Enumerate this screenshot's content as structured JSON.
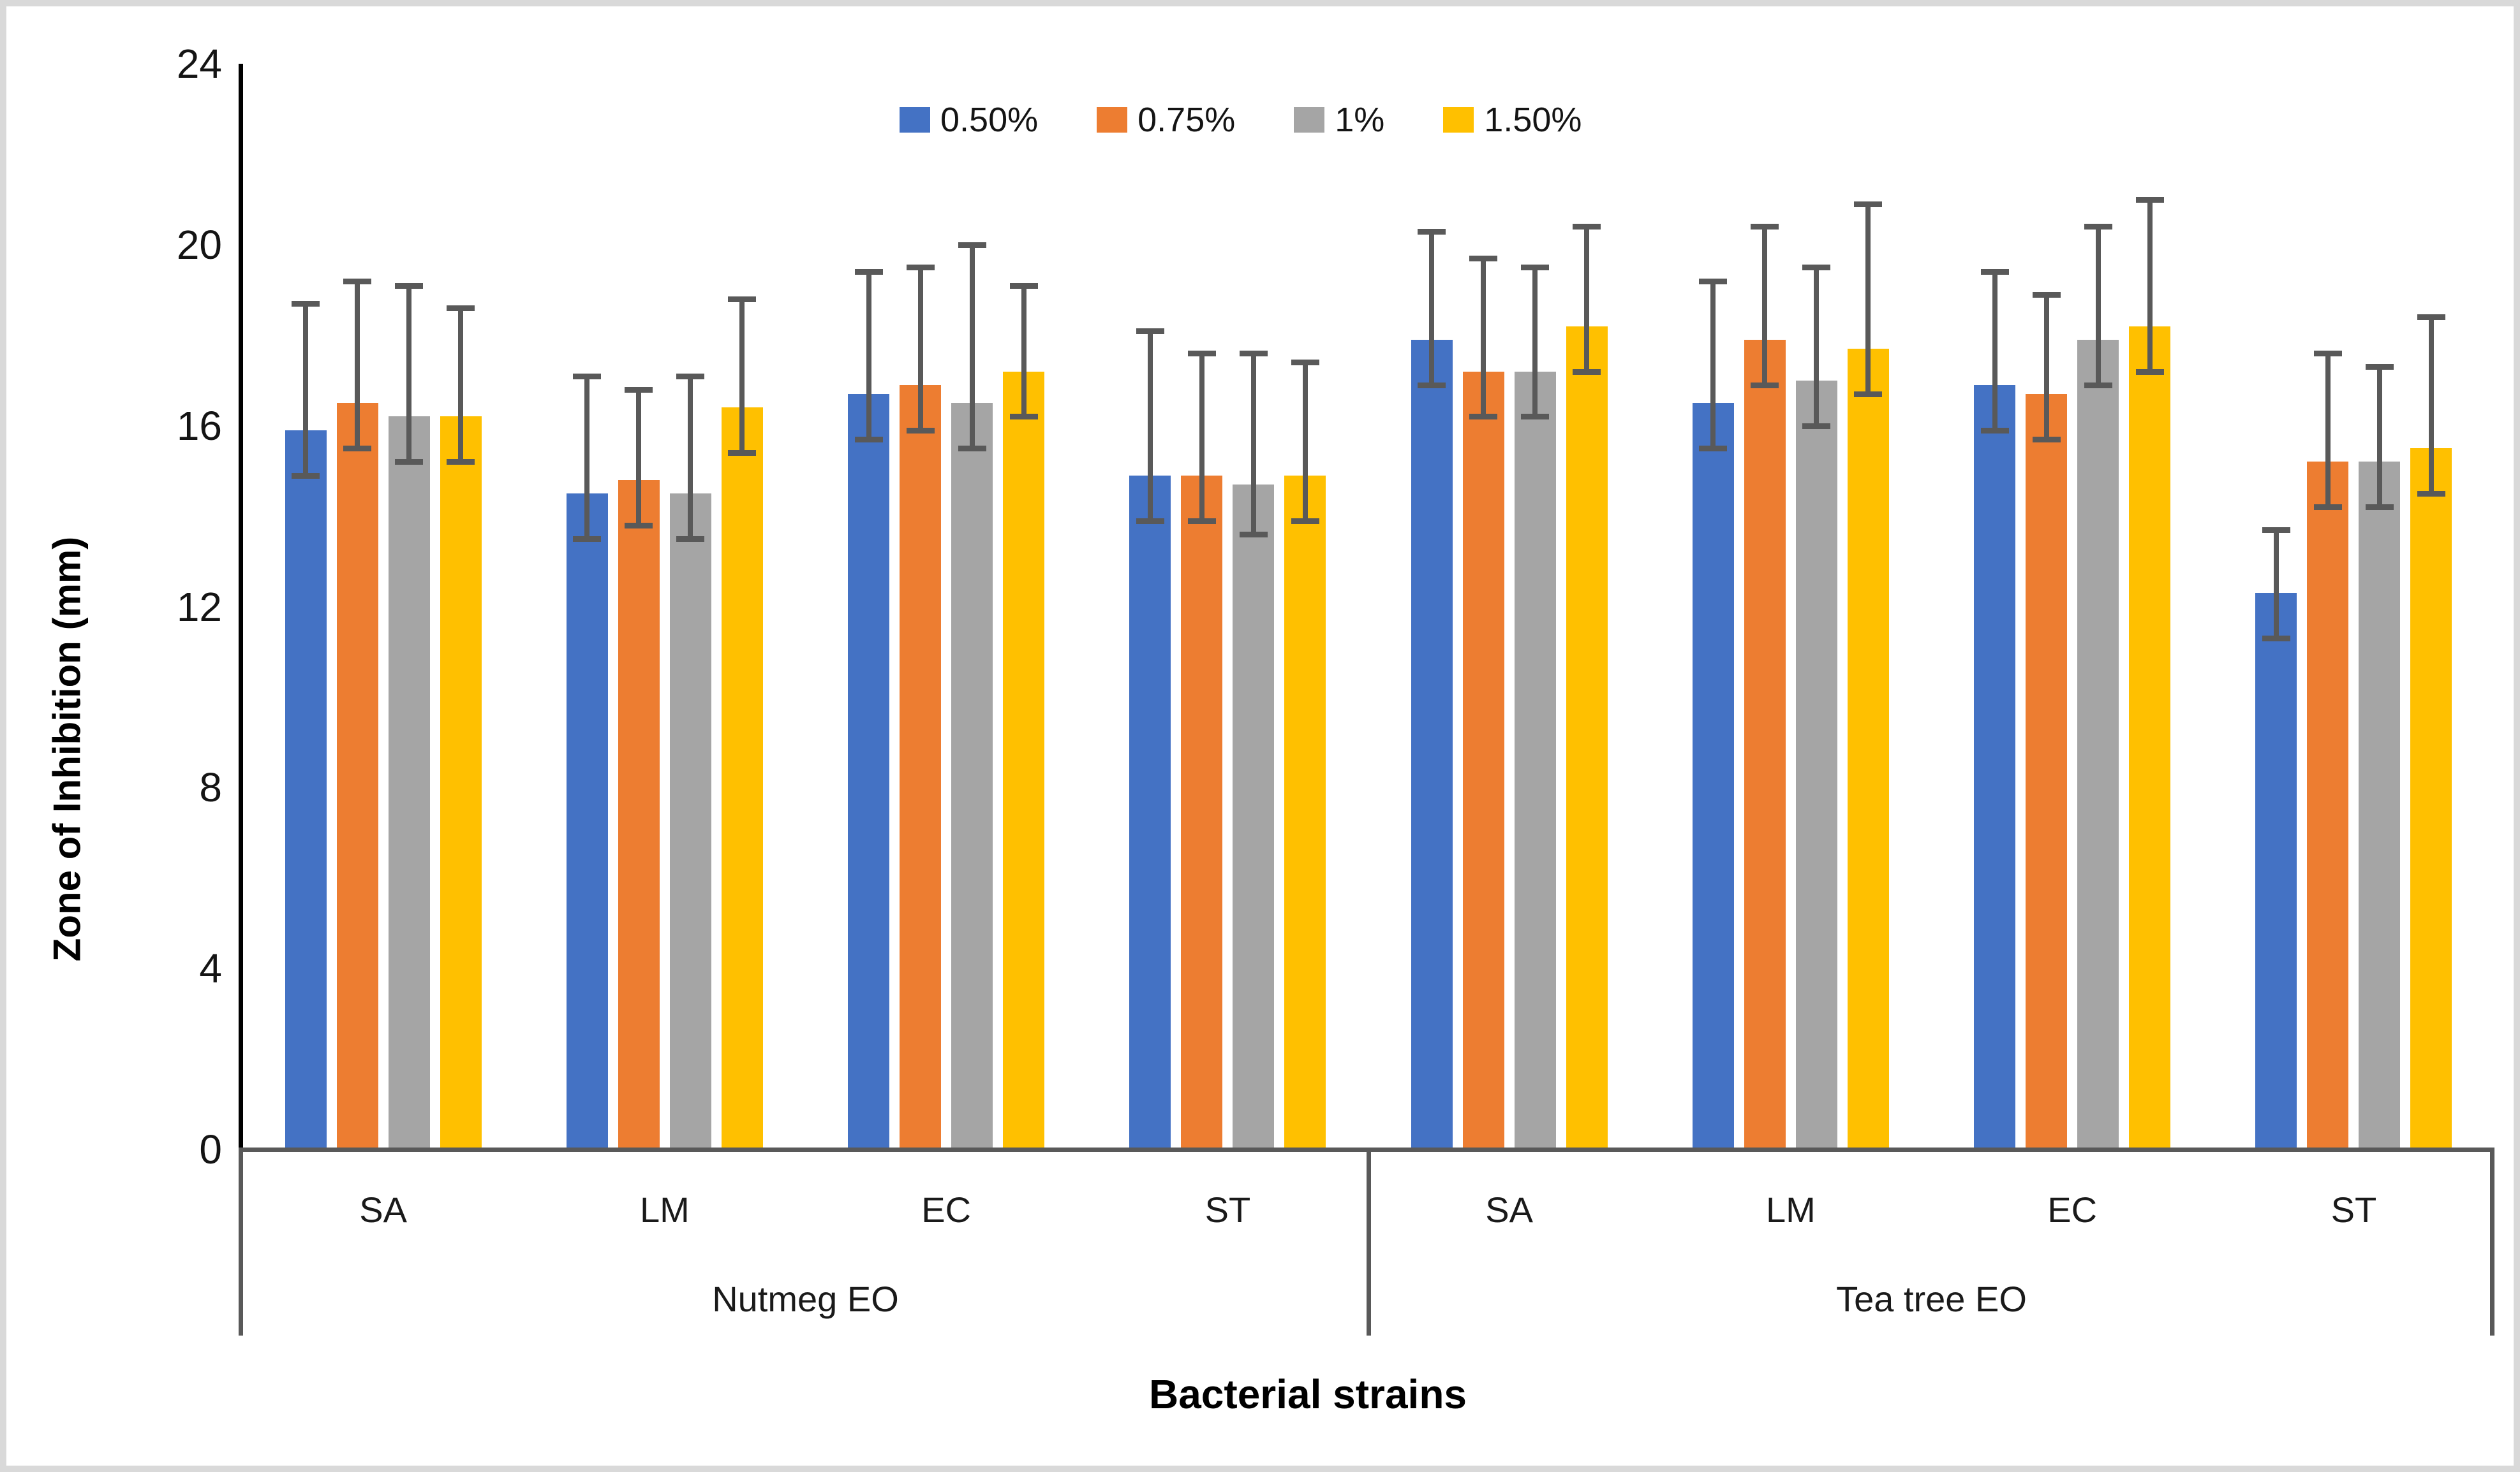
{
  "frame": {
    "border_color": "#d9d9d9",
    "background": "#ffffff"
  },
  "chart_data": {
    "type": "bar",
    "title": "",
    "ylabel": "Zone of Inhibition (mm)",
    "xlabel": "Bacterial strains",
    "ylim": [
      0,
      24
    ],
    "yticks": [
      0,
      4,
      8,
      12,
      16,
      20,
      24
    ],
    "grid": false,
    "legend_position": "top-center",
    "axis_line_color": "#000000",
    "error_bar_color": "#595959",
    "group_labels": [
      "Nutmeg EO",
      "Tea tree EO"
    ],
    "categories": [
      "SA",
      "LM",
      "EC",
      "ST",
      "SA",
      "LM",
      "EC",
      "ST"
    ],
    "series": [
      {
        "name": "0.50%",
        "color": "#4472C4",
        "values": [
          15.9,
          14.5,
          16.7,
          14.9,
          17.9,
          16.5,
          16.9,
          12.3
        ],
        "error_upper": [
          18.7,
          17.1,
          19.4,
          18.1,
          20.3,
          19.2,
          19.4,
          13.7
        ],
        "error_lower": [
          14.9,
          13.5,
          15.7,
          13.9,
          16.9,
          15.5,
          15.9,
          11.3
        ]
      },
      {
        "name": "0.75%",
        "color": "#ED7D31",
        "values": [
          16.5,
          14.8,
          16.9,
          14.9,
          17.2,
          17.9,
          16.7,
          15.2
        ],
        "error_upper": [
          19.2,
          16.8,
          19.5,
          17.6,
          19.7,
          20.4,
          18.9,
          17.6
        ],
        "error_lower": [
          15.5,
          13.8,
          15.9,
          13.9,
          16.2,
          16.9,
          15.7,
          14.2
        ]
      },
      {
        "name": "1%",
        "color": "#A5A5A5",
        "values": [
          16.2,
          14.5,
          16.5,
          14.7,
          17.2,
          17.0,
          17.9,
          15.2
        ],
        "error_upper": [
          19.1,
          17.1,
          20.0,
          17.6,
          19.5,
          19.5,
          20.4,
          17.3
        ],
        "error_lower": [
          15.2,
          13.5,
          15.5,
          13.6,
          16.2,
          16.0,
          16.9,
          14.2
        ]
      },
      {
        "name": "1.50%",
        "color": "#FFC000",
        "values": [
          16.2,
          16.4,
          17.2,
          14.9,
          18.2,
          17.7,
          18.2,
          15.5
        ],
        "error_upper": [
          18.6,
          18.8,
          19.1,
          17.4,
          20.4,
          20.9,
          21.0,
          18.4
        ],
        "error_lower": [
          15.2,
          15.4,
          16.2,
          13.9,
          17.2,
          16.7,
          17.2,
          14.5
        ]
      }
    ]
  }
}
